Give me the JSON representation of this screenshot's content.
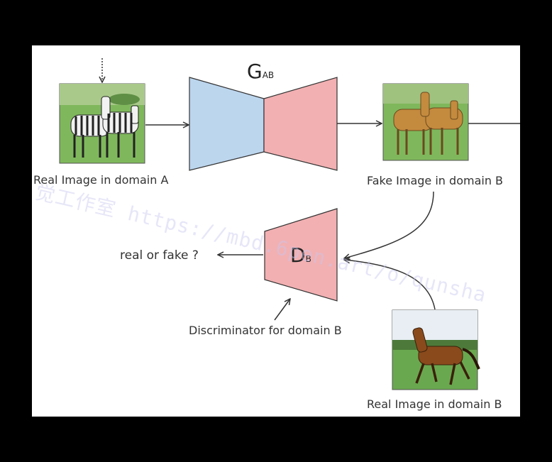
{
  "generator": {
    "name": "G",
    "subscript": "AB"
  },
  "discriminator": {
    "name": "D",
    "subscript": "B"
  },
  "labels": {
    "real_a": "Real Image in domain A",
    "fake_b": "Fake Image in domain B",
    "real_b": "Real Image in domain B",
    "disc": "Discriminator for domain B",
    "output": "real or fake ?"
  },
  "watermark": "觉工作室 https://mbd.6pen.art/o/qunsha",
  "colors": {
    "encoder": "#bcd6ee",
    "decoder": "#f2b0b2",
    "discriminator": "#f2b0b2",
    "outline": "#333333"
  },
  "images": [
    "zebra-image",
    "fake-horse-image",
    "real-horse-image"
  ]
}
